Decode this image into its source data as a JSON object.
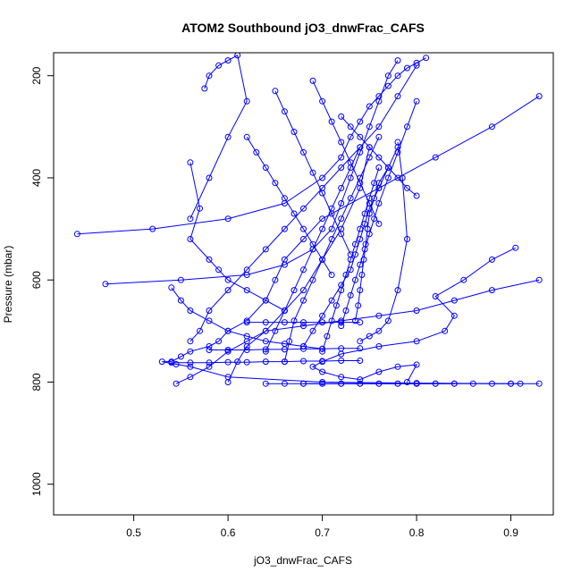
{
  "chart_data": {
    "type": "scatter",
    "title": "ATOM2 Southbound jO3_dnwFrac_CAFS",
    "xlabel": "jO3_dnwFrac_CAFS",
    "ylabel": "Pressure (mbar)",
    "xlim": [
      0.415,
      0.945
    ],
    "ylim": [
      1060,
      155
    ],
    "y_reversed": true,
    "x_ticks": [
      0.5,
      0.6,
      0.7,
      0.8,
      0.9
    ],
    "x_tick_labels": [
      "0.5",
      "0.6",
      "0.7",
      "0.8",
      "0.9"
    ],
    "y_ticks": [
      200,
      400,
      600,
      800,
      1000
    ],
    "y_tick_labels": [
      "200",
      "400",
      "600",
      "800",
      "1000"
    ],
    "grid": false,
    "marker": "open-circle",
    "series_color": "#0000ff",
    "series": [
      {
        "x": [
          0.93,
          0.88,
          0.82,
          0.76,
          0.7,
          0.68,
          0.66,
          0.65,
          0.64,
          0.62,
          0.6,
          0.59,
          0.58,
          0.56,
          0.55,
          0.54,
          0.53,
          0.545,
          0.56,
          0.6,
          0.7,
          0.8,
          0.9,
          0.93
        ],
        "y": [
          240,
          300,
          360,
          420,
          480,
          520,
          560,
          600,
          640,
          680,
          700,
          720,
          730,
          740,
          750,
          760,
          760,
          765,
          770,
          790,
          800,
          802,
          803,
          803
        ]
      },
      {
        "x": [
          0.905,
          0.88,
          0.85,
          0.82,
          0.84,
          0.83,
          0.8,
          0.76,
          0.72,
          0.7,
          0.69,
          0.7,
          0.72,
          0.74,
          0.76,
          0.78,
          0.8,
          0.79
        ],
        "y": [
          537,
          560,
          600,
          632,
          670,
          700,
          720,
          730,
          745,
          760,
          770,
          780,
          790,
          795,
          780,
          770,
          766,
          800
        ]
      },
      {
        "x": [
          0.44,
          0.52,
          0.6,
          0.66,
          0.7,
          0.72,
          0.73,
          0.74,
          0.75,
          0.76,
          0.77,
          0.78,
          0.79,
          0.8,
          0.81
        ],
        "y": [
          510,
          500,
          480,
          450,
          400,
          360,
          320,
          290,
          260,
          240,
          220,
          200,
          185,
          175,
          165
        ]
      },
      {
        "x": [
          0.47,
          0.55,
          0.62,
          0.66,
          0.69,
          0.71,
          0.72,
          0.73,
          0.74,
          0.75,
          0.76,
          0.77,
          0.78
        ],
        "y": [
          608,
          600,
          590,
          570,
          540,
          500,
          450,
          400,
          350,
          300,
          250,
          200,
          170
        ]
      },
      {
        "x": [
          0.56,
          0.57,
          0.58,
          0.6,
          0.62,
          0.64,
          0.66,
          0.68,
          0.7,
          0.72,
          0.74,
          0.76,
          0.78,
          0.8
        ],
        "y": [
          720,
          700,
          660,
          620,
          580,
          540,
          500,
          460,
          420,
          380,
          340,
          300,
          240,
          180
        ]
      },
      {
        "x": [
          0.545,
          0.56,
          0.58,
          0.6,
          0.62,
          0.64,
          0.68,
          0.72,
          0.76,
          0.8,
          0.84,
          0.88,
          0.93
        ],
        "y": [
          803,
          790,
          770,
          740,
          720,
          700,
          690,
          680,
          670,
          660,
          640,
          620,
          600
        ]
      },
      {
        "x": [
          0.6,
          0.61,
          0.62,
          0.64,
          0.66,
          0.68,
          0.7,
          0.72,
          0.74,
          0.75
        ],
        "y": [
          800,
          760,
          730,
          700,
          660,
          620,
          560,
          500,
          420,
          340
        ]
      },
      {
        "x": [
          0.56,
          0.57,
          0.56,
          0.58,
          0.59,
          0.6,
          0.62,
          0.64,
          0.66
        ],
        "y": [
          370,
          460,
          520,
          560,
          580,
          600,
          620,
          640,
          660
        ]
      },
      {
        "x": [
          0.575,
          0.58,
          0.59,
          0.6,
          0.61,
          0.62,
          0.6,
          0.58,
          0.56
        ],
        "y": [
          225,
          200,
          180,
          170,
          160,
          250,
          320,
          400,
          480
        ]
      },
      {
        "x": [
          0.64,
          0.65,
          0.66,
          0.67,
          0.68,
          0.69,
          0.7,
          0.71,
          0.72,
          0.73,
          0.74
        ],
        "y": [
          740,
          700,
          660,
          620,
          580,
          540,
          500,
          460,
          420,
          380,
          340
        ]
      },
      {
        "x": [
          0.66,
          0.665,
          0.67,
          0.68,
          0.69,
          0.7,
          0.71,
          0.72,
          0.73,
          0.74,
          0.75,
          0.76
        ],
        "y": [
          760,
          720,
          680,
          640,
          600,
          560,
          520,
          480,
          440,
          400,
          360,
          320
        ]
      },
      {
        "x": [
          0.68,
          0.69,
          0.7,
          0.71,
          0.72,
          0.73,
          0.735,
          0.74,
          0.745,
          0.75,
          0.76,
          0.77,
          0.78
        ],
        "y": [
          730,
          700,
          670,
          640,
          610,
          580,
          550,
          520,
          490,
          460,
          420,
          380,
          340
        ]
      },
      {
        "x": [
          0.7,
          0.705,
          0.71,
          0.715,
          0.72,
          0.725,
          0.73,
          0.735,
          0.74,
          0.745,
          0.75,
          0.755,
          0.76
        ],
        "y": [
          740,
          710,
          680,
          650,
          620,
          590,
          560,
          530,
          500,
          470,
          440,
          410,
          380
        ]
      },
      {
        "x": [
          0.72,
          0.725,
          0.73,
          0.735,
          0.74,
          0.745,
          0.75,
          0.755,
          0.76,
          0.77,
          0.78,
          0.79,
          0.8
        ],
        "y": [
          690,
          660,
          630,
          600,
          570,
          540,
          510,
          480,
          450,
          400,
          350,
          300,
          250
        ]
      },
      {
        "x": [
          0.735,
          0.738,
          0.74,
          0.742,
          0.744,
          0.746,
          0.748,
          0.75,
          0.755,
          0.76,
          0.77
        ],
        "y": [
          680,
          650,
          620,
          590,
          560,
          530,
          500,
          470,
          440,
          410,
          380
        ]
      },
      {
        "x": [
          0.62,
          0.63,
          0.64,
          0.65,
          0.66,
          0.67,
          0.68,
          0.69,
          0.7,
          0.71
        ],
        "y": [
          320,
          350,
          380,
          410,
          440,
          470,
          500,
          530,
          560,
          590
        ]
      },
      {
        "x": [
          0.65,
          0.66,
          0.67,
          0.68,
          0.69,
          0.7,
          0.71,
          0.72,
          0.73
        ],
        "y": [
          230,
          270,
          310,
          350,
          390,
          430,
          470,
          510,
          550
        ]
      },
      {
        "x": [
          0.69,
          0.7,
          0.71,
          0.72,
          0.73,
          0.74,
          0.75,
          0.76
        ],
        "y": [
          210,
          250,
          290,
          330,
          370,
          410,
          450,
          490
        ]
      },
      {
        "x": [
          0.78,
          0.785,
          0.79,
          0.78,
          0.77,
          0.76,
          0.75,
          0.74
        ],
        "y": [
          330,
          400,
          520,
          620,
          680,
          700,
          710,
          720
        ]
      },
      {
        "x": [
          0.8,
          0.79,
          0.78,
          0.77,
          0.76,
          0.75,
          0.74,
          0.73,
          0.72
        ],
        "y": [
          435,
          420,
          400,
          380,
          360,
          340,
          320,
          300,
          280
        ]
      },
      {
        "x": [
          0.54,
          0.55,
          0.56,
          0.58,
          0.6,
          0.62,
          0.64,
          0.66,
          0.68,
          0.7
        ],
        "y": [
          615,
          640,
          660,
          680,
          700,
          710,
          720,
          725,
          730,
          735
        ]
      },
      {
        "x": [
          0.58,
          0.6,
          0.62,
          0.64,
          0.66,
          0.68,
          0.7,
          0.72,
          0.74
        ],
        "y": [
          737,
          737,
          737,
          736,
          736,
          735,
          735,
          734,
          734
        ]
      },
      {
        "x": [
          0.54,
          0.56,
          0.58,
          0.6,
          0.62,
          0.64,
          0.66,
          0.68,
          0.7,
          0.72,
          0.74
        ],
        "y": [
          762,
          762,
          762,
          761,
          761,
          760,
          760,
          759,
          759,
          758,
          758
        ]
      },
      {
        "x": [
          0.62,
          0.64,
          0.66,
          0.68,
          0.7,
          0.72,
          0.74
        ],
        "y": [
          683,
          683,
          683,
          683,
          683,
          683,
          683
        ]
      },
      {
        "x": [
          0.68,
          0.7,
          0.72,
          0.74,
          0.76,
          0.78,
          0.8,
          0.82,
          0.84
        ],
        "y": [
          803,
          803,
          803,
          803,
          803,
          803,
          803,
          803,
          803
        ]
      },
      {
        "x": [
          0.64,
          0.66,
          0.68,
          0.7,
          0.72,
          0.74,
          0.76,
          0.78,
          0.8,
          0.82,
          0.84,
          0.86,
          0.88,
          0.9,
          0.91
        ],
        "y": [
          803,
          803,
          803,
          803,
          803,
          803,
          803,
          803,
          803,
          803,
          803,
          803,
          803,
          803,
          803
        ]
      }
    ]
  }
}
